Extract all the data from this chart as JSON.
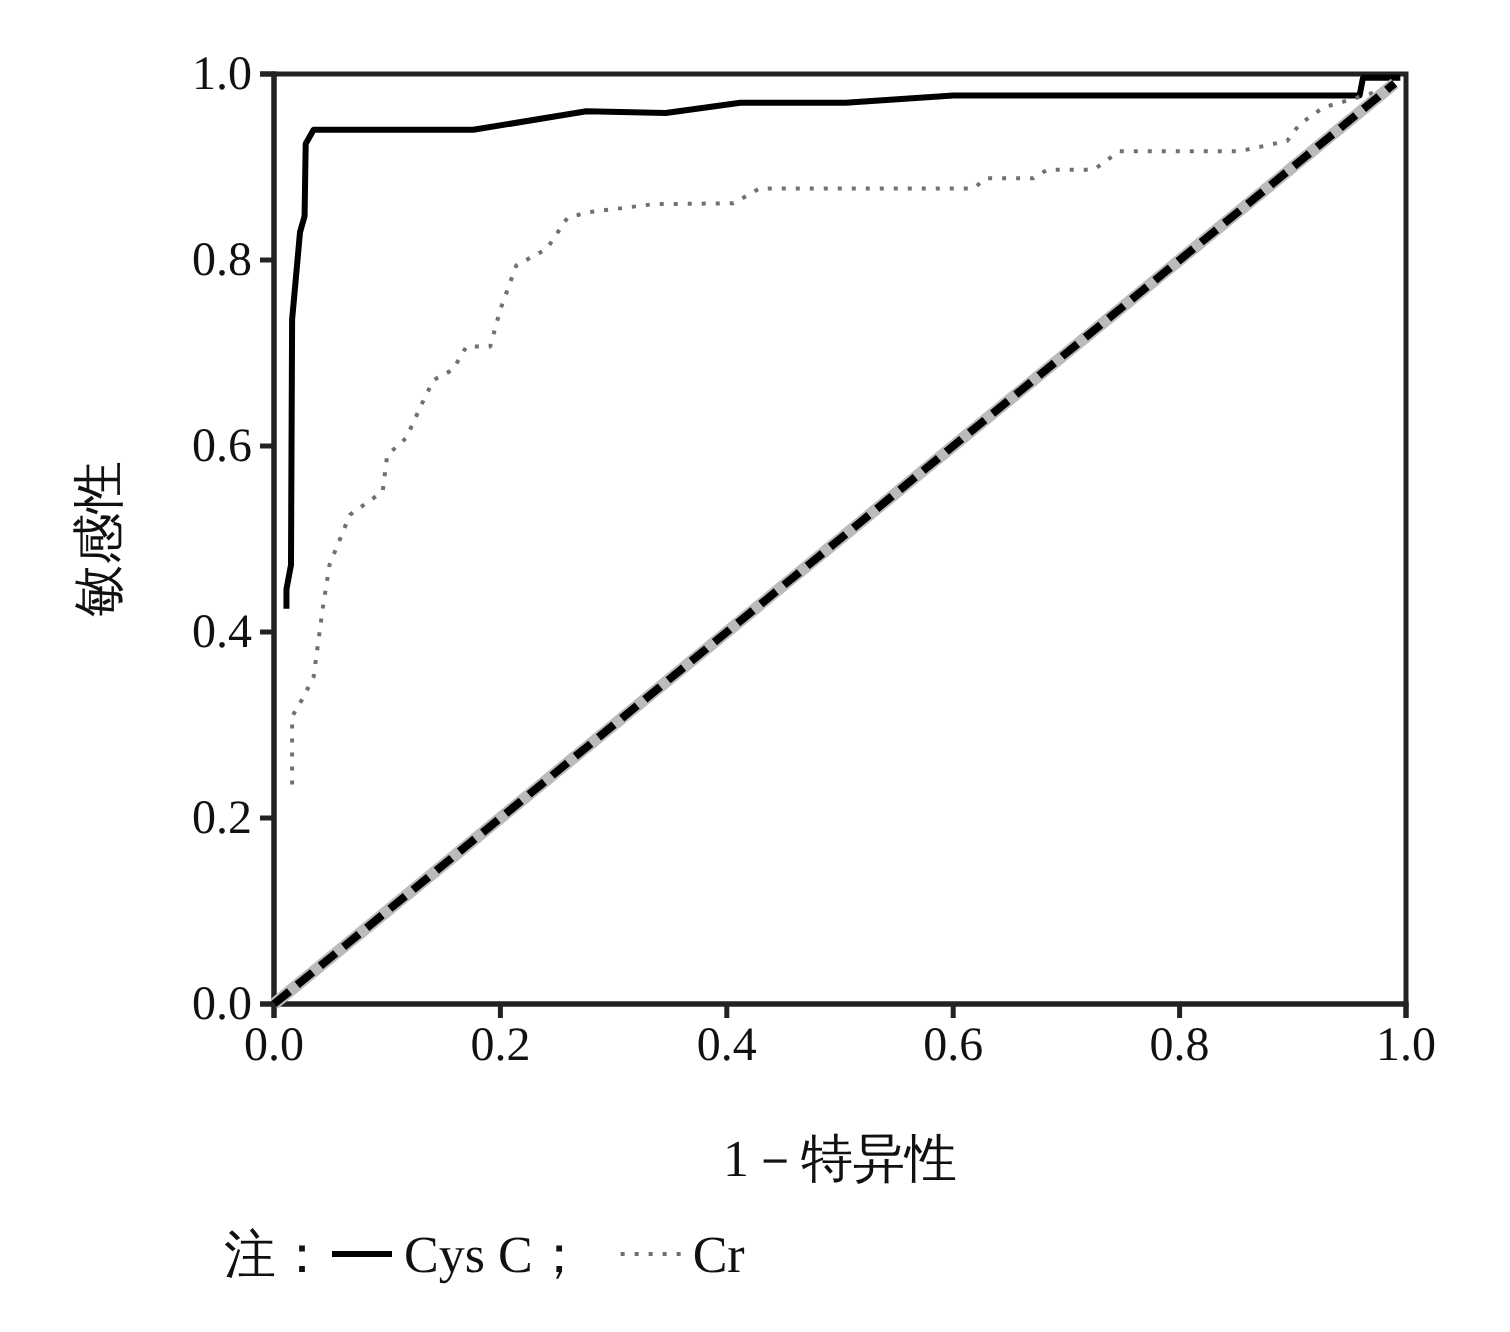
{
  "chart_data": {
    "type": "line",
    "xlabel": "1－特异性",
    "ylabel": "敏感性",
    "legend_title": "注：",
    "legend": "bottom left",
    "grid": false,
    "marker": "none",
    "xlim": [
      0,
      1
    ],
    "ylim": [
      0,
      1
    ],
    "xticks": [
      {
        "value": 0,
        "label": "0.0"
      },
      {
        "value": 0.2,
        "label": "0.2"
      },
      {
        "value": 0.4,
        "label": "0.4"
      },
      {
        "value": 0.6,
        "label": "0.6"
      },
      {
        "value": 0.8,
        "label": "0.8"
      },
      {
        "value": 1,
        "label": "1.0"
      }
    ],
    "yticks": [
      {
        "value": 0,
        "label": "0.0"
      },
      {
        "value": 0.2,
        "label": "0.2"
      },
      {
        "value": 0.4,
        "label": "0.4"
      },
      {
        "value": 0.6,
        "label": "0.6"
      },
      {
        "value": 0.8,
        "label": "0.8"
      },
      {
        "value": 1,
        "label": "1.0"
      }
    ],
    "series": [
      {
        "name": "Cys C；",
        "color": "#000000",
        "line_style": "solid",
        "x": [
          0.011,
          0.011,
          0.015,
          0.016,
          0.023,
          0.027,
          0.028,
          0.035,
          0.176,
          0.276,
          0.346,
          0.412,
          0.505,
          0.6,
          0.959,
          0.962,
          0.995
        ],
        "values": [
          0.425,
          0.446,
          0.472,
          0.736,
          0.83,
          0.847,
          0.925,
          0.94,
          0.94,
          0.96,
          0.958,
          0.969,
          0.969,
          0.977,
          0.977,
          0.996,
          0.996
        ]
      },
      {
        "name": "Cr",
        "color": "#707070",
        "line_style": "dotted",
        "x": [
          0.016,
          0.016,
          0.026,
          0.035,
          0.043,
          0.049,
          0.055,
          0.067,
          0.096,
          0.1,
          0.117,
          0.132,
          0.141,
          0.158,
          0.17,
          0.191,
          0.2,
          0.214,
          0.241,
          0.259,
          0.276,
          0.335,
          0.406,
          0.429,
          0.618,
          0.629,
          0.671,
          0.683,
          0.724,
          0.747,
          0.853,
          0.895,
          0.906,
          0.927,
          0.989
        ],
        "values": [
          0.236,
          0.309,
          0.33,
          0.352,
          0.425,
          0.472,
          0.49,
          0.526,
          0.551,
          0.59,
          0.609,
          0.649,
          0.671,
          0.682,
          0.707,
          0.707,
          0.747,
          0.794,
          0.812,
          0.845,
          0.851,
          0.86,
          0.861,
          0.877,
          0.877,
          0.888,
          0.888,
          0.897,
          0.897,
          0.917,
          0.917,
          0.928,
          0.946,
          0.964,
          0.986
        ]
      },
      {
        "color": "#000000",
        "line_style": "dashed",
        "x": [
          0,
          0.99
        ],
        "values": [
          0,
          0.99
        ]
      }
    ]
  }
}
